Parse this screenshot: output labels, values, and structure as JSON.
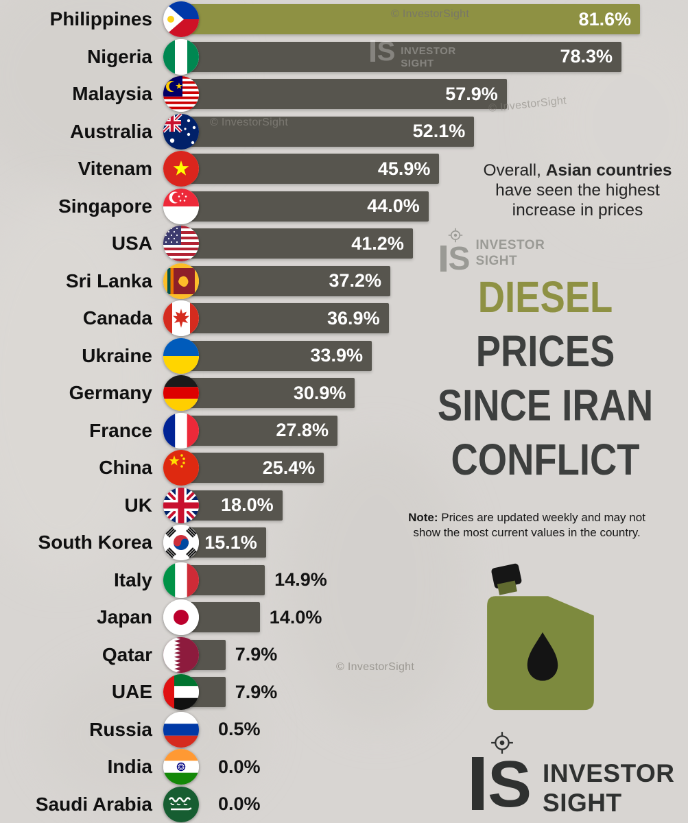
{
  "brand": {
    "copyright": "© InvestorSight",
    "name_top": "INVESTOR",
    "name_bottom": "SIGHT",
    "monogram": "S"
  },
  "right_panel": {
    "annotation": {
      "start": "Overall,",
      "bold": "Asian countries",
      "end": "have seen the highest increase in prices"
    },
    "title_lines": [
      "DIESEL",
      "PRICES",
      "SINCE IRAN",
      "CONFLICT"
    ],
    "note_label": "Note:",
    "note_text": "Prices are updated weekly and may not show the most current values in the country."
  },
  "icons": {
    "flag": "circular country flag icon",
    "crosshair-icon": "target crosshair logo mark",
    "jerrycan-icon": "olive fuel jerry can with black cap",
    "oil-drop-icon": "black oil drop on can"
  },
  "chart_data": {
    "type": "bar",
    "orientation": "horizontal",
    "unit": "%",
    "grid": false,
    "bar_color": "#57554E",
    "highlight_color": "#8E9143",
    "highlight_index": 0,
    "categories": [
      "Philippines",
      "Nigeria",
      "Malaysia",
      "Australia",
      "Vitenam",
      "Singapore",
      "USA",
      "Sri Lanka",
      "Canada",
      "Ukraine",
      "Germany",
      "France",
      "China",
      "UK",
      "South Korea",
      "Italy",
      "Japan",
      "Qatar",
      "UAE",
      "Russia",
      "India",
      "Saudi Arabia"
    ],
    "values": [
      81.6,
      78.3,
      57.9,
      52.1,
      45.9,
      44.0,
      41.2,
      37.2,
      36.9,
      33.9,
      30.9,
      27.8,
      25.4,
      18.0,
      15.1,
      14.9,
      14.0,
      7.9,
      7.9,
      0.5,
      0.0,
      0.0
    ],
    "value_labels": [
      "81.6%",
      "78.3%",
      "57.9%",
      "52.1%",
      "45.9%",
      "44.0%",
      "41.2%",
      "37.2%",
      "36.9%",
      "33.9%",
      "30.9%",
      "27.8%",
      "25.4%",
      "18.0%",
      "15.1%",
      "14.9%",
      "14.0%",
      "7.9%",
      "7.9%",
      "0.5%",
      "0.0%",
      "0.0%"
    ],
    "flags": [
      "ph",
      "ng",
      "my",
      "au",
      "vn",
      "sg",
      "us",
      "lk",
      "ca",
      "ua",
      "de",
      "fr",
      "cn",
      "gb",
      "kr",
      "it",
      "jp",
      "qa",
      "ae",
      "ru",
      "in",
      "sa"
    ]
  }
}
